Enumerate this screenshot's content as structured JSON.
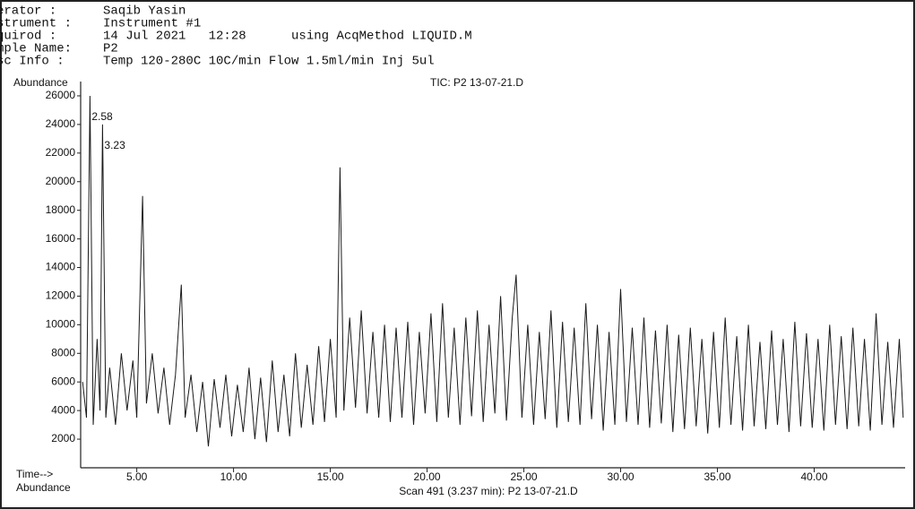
{
  "header": {
    "lines": [
      {
        "label": "erator :",
        "value": "Saqib Yasin"
      },
      {
        "label": "strument :",
        "value": "Instrument #1"
      },
      {
        "label": "quirod :",
        "value": "14 Jul 2021   12:28      using AcqMethod LIQUID.M"
      },
      {
        "label": "mple Name:",
        "value": "P2"
      },
      {
        "label": "sc Info :",
        "value": "Temp 120-280C 10C/min Flow 1.5ml/min Inj 5ul"
      }
    ]
  },
  "chart_data": {
    "type": "line",
    "y_label": "Abundance",
    "title": "TIC: P2 13-07-21.D",
    "x_label": "Time-->",
    "footer_label": "Abundance",
    "footer": "Scan 491 (3.237 min): P2 13-07-21.D",
    "annotations": [
      {
        "text": "2.58",
        "x": 2.58,
        "y": 26000
      },
      {
        "text": "3.23",
        "x": 3.23,
        "y": 24000
      }
    ],
    "color": "#1a1a1a",
    "xlim": [
      2.1,
      44.7
    ],
    "ylim": [
      0,
      27000
    ],
    "xticks": [
      {
        "value": 5,
        "label": "5.00"
      },
      {
        "value": 10,
        "label": "10.00"
      },
      {
        "value": 15,
        "label": "15.00"
      },
      {
        "value": 20,
        "label": "20.00"
      },
      {
        "value": 25,
        "label": "25.00"
      },
      {
        "value": 30,
        "label": "30.00"
      },
      {
        "value": 35,
        "label": "35.00"
      },
      {
        "value": 40,
        "label": "40.00"
      }
    ],
    "yticks": [
      2000,
      4000,
      6000,
      8000,
      10000,
      12000,
      14000,
      16000,
      18000,
      20000,
      22000,
      24000,
      26000
    ],
    "x": [
      2.2,
      2.4,
      2.58,
      2.75,
      2.95,
      3.1,
      3.23,
      3.4,
      3.6,
      3.9,
      4.2,
      4.5,
      4.8,
      5.0,
      5.3,
      5.5,
      5.8,
      6.1,
      6.4,
      6.7,
      7.0,
      7.3,
      7.5,
      7.8,
      8.1,
      8.4,
      8.7,
      9.0,
      9.3,
      9.6,
      9.9,
      10.2,
      10.5,
      10.8,
      11.1,
      11.4,
      11.7,
      12.0,
      12.3,
      12.6,
      12.9,
      13.2,
      13.5,
      13.8,
      14.1,
      14.4,
      14.7,
      15.0,
      15.3,
      15.5,
      15.7,
      16.0,
      16.3,
      16.6,
      16.9,
      17.2,
      17.5,
      17.8,
      18.1,
      18.4,
      18.7,
      19.0,
      19.3,
      19.6,
      19.9,
      20.2,
      20.5,
      20.8,
      21.1,
      21.4,
      21.7,
      22.0,
      22.3,
      22.6,
      22.9,
      23.2,
      23.5,
      23.8,
      24.1,
      24.4,
      24.6,
      24.9,
      25.2,
      25.5,
      25.8,
      26.1,
      26.4,
      26.7,
      27.0,
      27.3,
      27.6,
      27.9,
      28.2,
      28.5,
      28.8,
      29.1,
      29.4,
      29.7,
      30.0,
      30.3,
      30.6,
      30.9,
      31.2,
      31.5,
      31.8,
      32.1,
      32.4,
      32.7,
      33.0,
      33.3,
      33.6,
      33.9,
      34.2,
      34.5,
      34.8,
      35.1,
      35.4,
      35.7,
      36.0,
      36.3,
      36.6,
      36.9,
      37.2,
      37.5,
      37.8,
      38.1,
      38.4,
      38.7,
      39.0,
      39.3,
      39.6,
      39.9,
      40.2,
      40.5,
      40.8,
      41.1,
      41.4,
      41.7,
      42.0,
      42.3,
      42.6,
      42.9,
      43.2,
      43.5,
      43.8,
      44.1,
      44.4,
      44.6
    ],
    "values": [
      6000,
      3500,
      26000,
      3000,
      9000,
      4000,
      24000,
      3500,
      7000,
      3000,
      8000,
      4000,
      7500,
      3500,
      19000,
      4500,
      8000,
      3800,
      7000,
      3000,
      6500,
      12800,
      3500,
      6500,
      2500,
      6000,
      1500,
      6200,
      2800,
      6500,
      2200,
      5800,
      2500,
      7000,
      2000,
      6300,
      1800,
      7500,
      2500,
      6500,
      2200,
      8000,
      2800,
      7200,
      3000,
      8500,
      3200,
      9000,
      3500,
      21000,
      4000,
      10500,
      4200,
      11000,
      3800,
      9500,
      3500,
      10000,
      3200,
      9800,
      3500,
      10200,
      3000,
      9500,
      3800,
      10800,
      3200,
      11500,
      3500,
      9800,
      3000,
      10500,
      3600,
      11000,
      3200,
      10000,
      3800,
      12000,
      3300,
      10500,
      13500,
      3500,
      10000,
      3000,
      9500,
      3400,
      11000,
      2800,
      10200,
      3200,
      9800,
      3000,
      11500,
      3400,
      10000,
      2600,
      9500,
      3000,
      12500,
      3200,
      9800,
      3000,
      10500,
      2800,
      9600,
      3100,
      10000,
      2500,
      9300,
      2700,
      9800,
      2900,
      9000,
      2400,
      9500,
      2800,
      10500,
      3000,
      9200,
      2600,
      10000,
      2900,
      8800,
      2700,
      9600,
      3000,
      9000,
      2500,
      10200,
      2900,
      9400,
      2800,
      9000,
      2600,
      10000,
      3000,
      9200,
      2700,
      9800,
      2900,
      9000,
      2600,
      10800,
      3000,
      8800,
      2800,
      9000,
      3500
    ]
  }
}
